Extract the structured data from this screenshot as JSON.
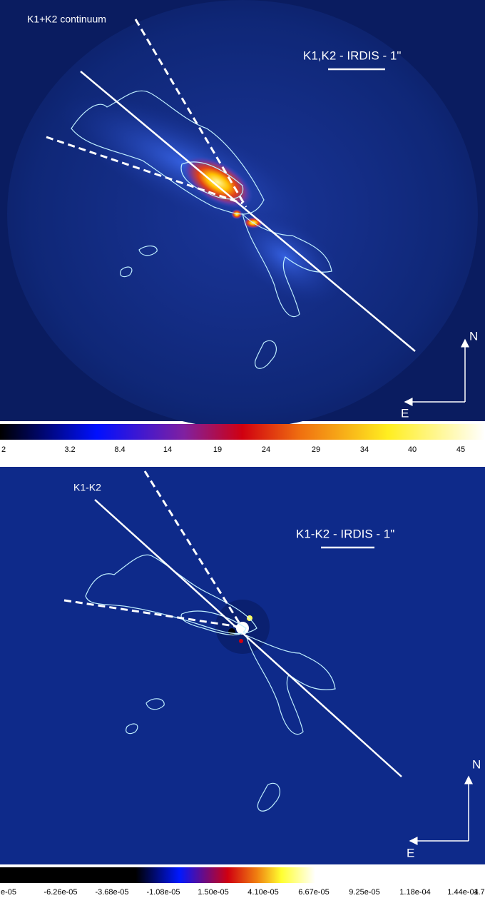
{
  "panels": [
    {
      "label": "K1+K2 continuum",
      "scale_label": "K1,K2 - IRDIS - 1\"",
      "north": "N",
      "east": "E",
      "colorbar_labels": [
        "2",
        "3.2",
        "8.4",
        "14",
        "19",
        "24",
        "29",
        "34",
        "40",
        "45"
      ]
    },
    {
      "label": "K1-K2",
      "scale_label": "K1-K2 - IRDIS - 1\"",
      "north": "N",
      "east": "E",
      "colorbar_labels": [
        "e-05",
        "-6.26e-05",
        "-3.68e-05",
        "-1.08e-05",
        "1.50e-05",
        "4.10e-05",
        "6.67e-05",
        "9.25e-05",
        "1.18e-04",
        "1.44e-04",
        "1.7"
      ]
    }
  ]
}
